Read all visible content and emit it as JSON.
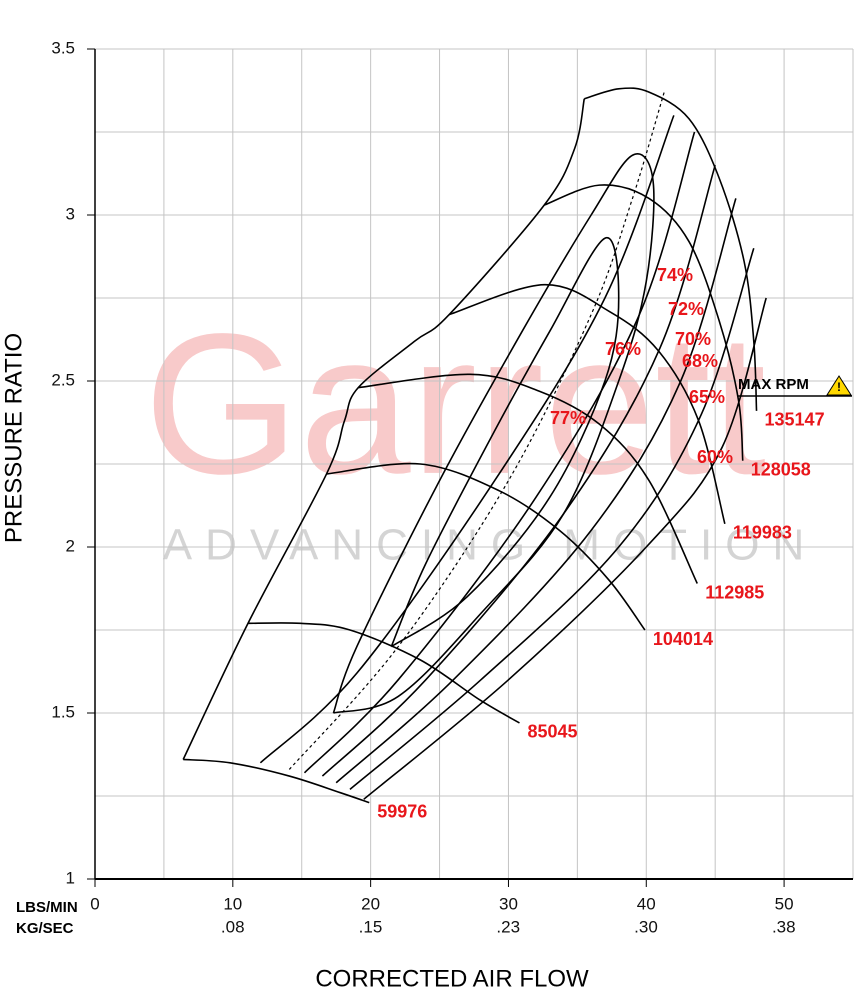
{
  "chart_data": {
    "type": "compressor-map",
    "watermark": {
      "title": "Garrett",
      "subtitle": "ADVANCING MOTION"
    },
    "xlabel": "CORRECTED AIR FLOW",
    "ylabel": "PRESSURE RATIO",
    "xunit": "LBS/MIN",
    "x2unit": "KG/SEC",
    "xlim": [
      0,
      55
    ],
    "ylim": [
      1,
      3.5
    ],
    "x2lim": [
      0,
      0.416
    ],
    "xticks": [
      0,
      10,
      20,
      30,
      40,
      50
    ],
    "x2ticks": [
      {
        "value": 0.0756,
        "label": ".08"
      },
      {
        "value": 0.1512,
        "label": ".15"
      },
      {
        "value": 0.2268,
        "label": ".23"
      },
      {
        "value": 0.3024,
        "label": ".30"
      },
      {
        "value": 0.378,
        "label": ".38"
      }
    ],
    "yticks": [
      1,
      1.5,
      2,
      2.5,
      3,
      3.5
    ],
    "xgrid": [
      0,
      5,
      10,
      15,
      20,
      25,
      30,
      35,
      40,
      45,
      50,
      55
    ],
    "ygrid": [
      1,
      1.25,
      1.5,
      1.75,
      2,
      2.25,
      2.5,
      2.75,
      3,
      3.25,
      3.5
    ],
    "grid": true,
    "label_color": "#e8161b",
    "line_color": "#000000",
    "max_rpm_label": "MAX RPM",
    "surge": {
      "x": [
        6.4,
        11.1,
        16.8,
        18.1,
        19.1,
        23.2,
        25.7,
        32.6,
        34.8,
        35.5
      ],
      "y": [
        1.36,
        1.77,
        2.22,
        2.38,
        2.48,
        2.62,
        2.7,
        3.03,
        3.2,
        3.35
      ]
    },
    "dotted_line": {
      "x": [
        14.1,
        22,
        30,
        36,
        39,
        41.3
      ],
      "y": [
        1.33,
        1.7,
        2.2,
        2.7,
        3.05,
        3.37
      ]
    },
    "series": [
      {
        "name": "59976",
        "x": [
          6.4,
          9.8,
          14.1,
          17.8,
          19.9
        ],
        "y": [
          1.36,
          1.35,
          1.31,
          1.26,
          1.23
        ]
      },
      {
        "name": "85045",
        "x": [
          11.1,
          14.9,
          18.5,
          23.6,
          27.9,
          30.8
        ],
        "y": [
          1.77,
          1.77,
          1.75,
          1.66,
          1.54,
          1.47
        ]
      },
      {
        "name": "104014",
        "x": [
          16.8,
          23.6,
          29.3,
          33.7,
          37.3,
          39.9
        ],
        "y": [
          2.22,
          2.25,
          2.17,
          2.05,
          1.9,
          1.75
        ]
      },
      {
        "name": "112985",
        "x": [
          19.1,
          27.2,
          32.2,
          36.6,
          40.2,
          43.7
        ],
        "y": [
          2.48,
          2.52,
          2.47,
          2.37,
          2.2,
          1.89
        ]
      },
      {
        "name": "119983",
        "x": [
          25.7,
          32.6,
          37.3,
          40.9,
          43.8,
          45.7
        ],
        "y": [
          2.7,
          2.79,
          2.71,
          2.59,
          2.38,
          2.07
        ]
      },
      {
        "name": "128058",
        "x": [
          32.6,
          36.6,
          40.2,
          43.1,
          45.3,
          46.7,
          47.0
        ],
        "y": [
          3.03,
          3.09,
          3.05,
          2.92,
          2.68,
          2.44,
          2.26
        ]
      },
      {
        "name": "135147",
        "x": [
          35.5,
          38.0,
          40.2,
          43.1,
          45.3,
          47.1,
          47.8,
          48.0
        ],
        "y": [
          3.35,
          3.38,
          3.37,
          3.29,
          3.11,
          2.86,
          2.62,
          2.41
        ]
      }
    ],
    "efficiency": [
      {
        "name": "77%",
        "x": [
          21.5,
          24,
          29,
          33,
          37,
          38,
          37,
          33,
          27,
          21.5
        ],
        "y": [
          1.7,
          1.95,
          2.35,
          2.65,
          2.93,
          2.75,
          2.5,
          2.15,
          1.85,
          1.7
        ]
      },
      {
        "name": "76%",
        "x": [
          17.3,
          19,
          25,
          31,
          36,
          39,
          40.5,
          40,
          38,
          34,
          28,
          22,
          17.3
        ],
        "y": [
          1.5,
          1.7,
          2.2,
          2.65,
          3.0,
          3.18,
          3.1,
          2.8,
          2.5,
          2.1,
          1.8,
          1.55,
          1.5
        ]
      },
      {
        "name": "74%",
        "x": [
          12,
          19,
          29,
          37,
          42
        ],
        "y": [
          1.35,
          1.62,
          2.2,
          2.75,
          3.3
        ]
      },
      {
        "name": "72%",
        "x": [
          15.2,
          22,
          32,
          39.5,
          43.5
        ],
        "y": [
          1.32,
          1.6,
          2.15,
          2.7,
          3.25
        ]
      },
      {
        "name": "70%",
        "x": [
          16.5,
          24,
          34,
          41,
          45
        ],
        "y": [
          1.31,
          1.6,
          2.1,
          2.6,
          3.15
        ]
      },
      {
        "name": "68%",
        "x": [
          17.5,
          26,
          36,
          42.5,
          46.5
        ],
        "y": [
          1.29,
          1.6,
          2.05,
          2.5,
          3.05
        ]
      },
      {
        "name": "65%",
        "x": [
          18.5,
          28,
          38,
          44,
          47.8
        ],
        "y": [
          1.27,
          1.6,
          2.0,
          2.4,
          2.9
        ]
      },
      {
        "name": "60%",
        "x": [
          19.5,
          30,
          40,
          45.5,
          48.7
        ],
        "y": [
          1.24,
          1.6,
          2.0,
          2.3,
          2.75
        ]
      }
    ]
  }
}
